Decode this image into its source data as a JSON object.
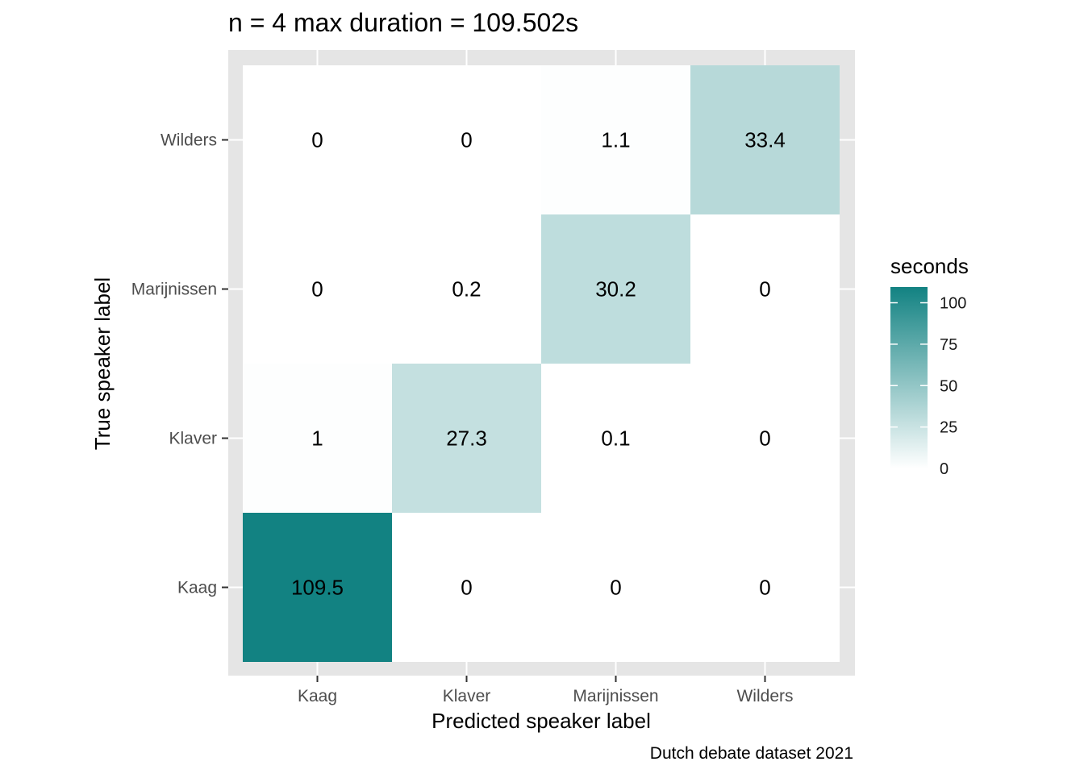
{
  "chart_data": {
    "type": "heatmap",
    "title": "n = 4 max duration = 109.502s",
    "xlabel": "Predicted speaker label",
    "ylabel": "True speaker label",
    "caption": "Dutch debate dataset 2021",
    "x_categories": [
      "Kaag",
      "Klaver",
      "Marijnissen",
      "Wilders"
    ],
    "y_categories": [
      "Kaag",
      "Klaver",
      "Marijnissen",
      "Wilders"
    ],
    "cells": [
      {
        "x": "Kaag",
        "y": "Kaag",
        "value": 109.502,
        "label": "109.5"
      },
      {
        "x": "Klaver",
        "y": "Kaag",
        "value": 0,
        "label": "0"
      },
      {
        "x": "Marijnissen",
        "y": "Kaag",
        "value": 0,
        "label": "0"
      },
      {
        "x": "Wilders",
        "y": "Kaag",
        "value": 0,
        "label": "0"
      },
      {
        "x": "Kaag",
        "y": "Klaver",
        "value": 1,
        "label": "1"
      },
      {
        "x": "Klaver",
        "y": "Klaver",
        "value": 27.3,
        "label": "27.3"
      },
      {
        "x": "Marijnissen",
        "y": "Klaver",
        "value": 0.1,
        "label": "0.1"
      },
      {
        "x": "Wilders",
        "y": "Klaver",
        "value": 0,
        "label": "0"
      },
      {
        "x": "Kaag",
        "y": "Marijnissen",
        "value": 0,
        "label": "0"
      },
      {
        "x": "Klaver",
        "y": "Marijnissen",
        "value": 0.2,
        "label": "0.2"
      },
      {
        "x": "Marijnissen",
        "y": "Marijnissen",
        "value": 30.2,
        "label": "30.2"
      },
      {
        "x": "Wilders",
        "y": "Marijnissen",
        "value": 0,
        "label": "0"
      },
      {
        "x": "Kaag",
        "y": "Wilders",
        "value": 0,
        "label": "0"
      },
      {
        "x": "Klaver",
        "y": "Wilders",
        "value": 0,
        "label": "0"
      },
      {
        "x": "Marijnissen",
        "y": "Wilders",
        "value": 1.1,
        "label": "1.1"
      },
      {
        "x": "Wilders",
        "y": "Wilders",
        "value": 33.4,
        "label": "33.4"
      }
    ],
    "legend": {
      "title": "seconds",
      "position": "right",
      "ticks": [
        0,
        25,
        50,
        75,
        100
      ],
      "range": [
        0,
        109.502
      ]
    },
    "colors": {
      "low": "#ffffff",
      "high": "#128282",
      "panel_background": "#e5e5e5",
      "grid": "#ffffff",
      "tick_text": "#4d4d4d"
    },
    "grid": true
  }
}
